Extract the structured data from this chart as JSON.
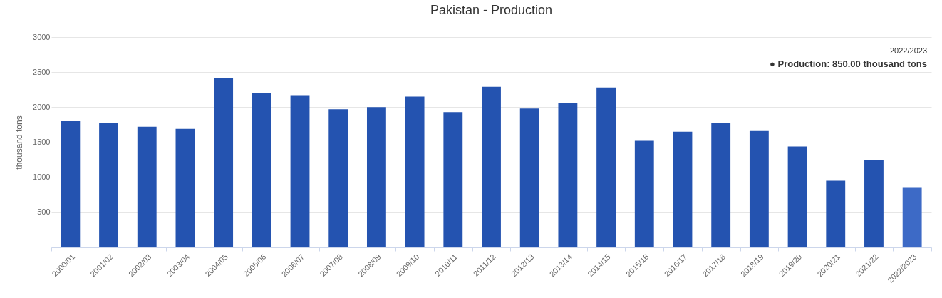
{
  "chart_data": {
    "type": "bar",
    "title": "Pakistan - Production",
    "ylabel": "thousand tons",
    "categories": [
      "2000/01",
      "2001/02",
      "2002/03",
      "2003/04",
      "2004/05",
      "2005/06",
      "2006/07",
      "2007/08",
      "2008/09",
      "2009/10",
      "2010/11",
      "2011/12",
      "2012/13",
      "2013/14",
      "2014/15",
      "2015/16",
      "2016/17",
      "2017/18",
      "2018/19",
      "2019/20",
      "2020/21",
      "2021/22",
      "2022/2023"
    ],
    "values": [
      1800,
      1770,
      1720,
      1690,
      2410,
      2200,
      2170,
      1970,
      2000,
      2150,
      1930,
      2290,
      1980,
      2060,
      2280,
      1520,
      1650,
      1780,
      1660,
      1440,
      950,
      1250,
      850
    ],
    "colors": [
      "#2453b0",
      "#2453b0",
      "#2453b0",
      "#2453b0",
      "#2453b0",
      "#2453b0",
      "#2453b0",
      "#2453b0",
      "#2453b0",
      "#2453b0",
      "#2453b0",
      "#2453b0",
      "#2453b0",
      "#2453b0",
      "#2453b0",
      "#2453b0",
      "#2453b0",
      "#2453b0",
      "#2453b0",
      "#2453b0",
      "#2453b0",
      "#2453b0",
      "#3d6ac6"
    ],
    "ylim": [
      0,
      3000
    ],
    "yticks": [
      {
        "value": 0,
        "label": null
      },
      500,
      1000,
      1500,
      2000,
      2500,
      3000
    ],
    "grid": "y",
    "annotations": [
      "2022/2023",
      "● Production: 850.00 thousand tons"
    ]
  }
}
